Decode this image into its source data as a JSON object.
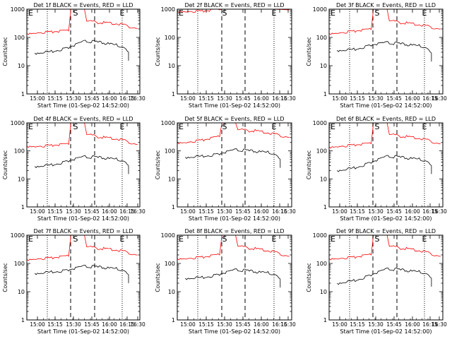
{
  "figure": {
    "ylabel": "Counts/sec",
    "xlabel": "Start Time (01-Sep-02 14:52:00)",
    "xticks": [
      "15:00",
      "15:15",
      "15:30",
      "15:45",
      "16:00",
      "16:15",
      "16:30"
    ],
    "yticks": [
      "1",
      "10",
      "100",
      "1000"
    ],
    "markers": {
      "start": "E",
      "saa": "S",
      "end": "E"
    },
    "colors": {
      "events": "#000000",
      "lld": "#ff0000"
    }
  },
  "chart_data": [
    {
      "type": "line",
      "title": "Det 1f BLACK = Events, RED = LLD",
      "xlabel": "Start Time (01-Sep-02 14:52:00)",
      "ylabel": "Counts/sec",
      "ylim": [
        1,
        1000
      ],
      "xlim": [
        "14:52",
        "16:32"
      ],
      "yscale": "log",
      "series": [
        {
          "name": "LLD",
          "x": [
            "14:52",
            "15:00",
            "15:15",
            "15:29",
            "15:31",
            "15:43",
            "15:45",
            "16:00",
            "16:15",
            "16:30"
          ],
          "values": [
            140,
            150,
            160,
            170,
            1000,
            1000,
            370,
            330,
            300,
            210
          ]
        },
        {
          "name": "Events",
          "x": [
            "14:59",
            "15:15",
            "15:29",
            "15:45",
            "16:00",
            "16:15",
            "16:22"
          ],
          "values": [
            28,
            32,
            45,
            75,
            63,
            50,
            30
          ]
        }
      ]
    },
    {
      "type": "line",
      "title": "Det 2f BLACK = Events, RED = LLD",
      "xlabel": "Start Time (01-Sep-02 14:52:00)",
      "ylabel": "Counts/sec",
      "ylim": [
        1,
        1000
      ],
      "xlim": [
        "14:52",
        "16:32"
      ],
      "yscale": "log",
      "series": [
        {
          "name": "LLD",
          "x": [
            "14:52",
            "15:00",
            "15:15",
            "15:29",
            "15:31",
            "15:43",
            "15:45",
            "16:00",
            "16:15",
            "16:30"
          ],
          "values": [
            850,
            860,
            870,
            950,
            1000,
            1000,
            1050,
            1050,
            1000,
            950
          ]
        },
        {
          "name": "Events",
          "x": [],
          "values": []
        }
      ]
    },
    {
      "type": "line",
      "title": "Det 3f BLACK = Events, RED = LLD",
      "xlabel": "Start Time (01-Sep-02 14:52:00)",
      "ylabel": "Counts/sec",
      "ylim": [
        1,
        1000
      ],
      "xlim": [
        "14:52",
        "16:32"
      ],
      "yscale": "log",
      "series": [
        {
          "name": "LLD",
          "x": [
            "14:52",
            "15:00",
            "15:15",
            "15:29",
            "15:31",
            "15:43",
            "15:45",
            "16:00",
            "16:15",
            "16:30"
          ],
          "values": [
            140,
            150,
            170,
            190,
            1000,
            1000,
            380,
            320,
            270,
            200
          ]
        },
        {
          "name": "Events",
          "x": [
            "14:59",
            "15:15",
            "15:29",
            "15:45",
            "16:00",
            "16:15",
            "16:22"
          ],
          "values": [
            35,
            38,
            55,
            65,
            55,
            48,
            28
          ]
        }
      ]
    },
    {
      "type": "line",
      "title": "Det 4f BLACK = Events, RED = LLD",
      "xlabel": "Start Time (01-Sep-02 14:52:00)",
      "ylabel": "Counts/sec",
      "ylim": [
        1,
        1000
      ],
      "xlim": [
        "14:52",
        "16:32"
      ],
      "yscale": "log",
      "series": [
        {
          "name": "LLD",
          "x": [
            "14:52",
            "15:00",
            "15:15",
            "15:29",
            "15:31",
            "15:43",
            "15:45",
            "16:00",
            "16:15",
            "16:30"
          ],
          "values": [
            150,
            150,
            160,
            170,
            1000,
            1000,
            380,
            300,
            260,
            170
          ]
        },
        {
          "name": "Events",
          "x": [
            "14:59",
            "15:15",
            "15:29",
            "15:45",
            "16:00",
            "16:15",
            "16:22"
          ],
          "values": [
            28,
            32,
            45,
            62,
            55,
            48,
            30
          ]
        }
      ]
    },
    {
      "type": "line",
      "title": "Det 5f BLACK = Events, RED = LLD",
      "xlabel": "Start Time (01-Sep-02 14:52:00)",
      "ylabel": "Counts/sec",
      "ylim": [
        1,
        1000
      ],
      "xlim": [
        "14:52",
        "16:32"
      ],
      "yscale": "log",
      "series": [
        {
          "name": "LLD",
          "x": [
            "14:52",
            "15:00",
            "15:15",
            "15:29",
            "15:31",
            "15:43",
            "15:45",
            "16:00",
            "16:15",
            "16:30"
          ],
          "values": [
            200,
            210,
            250,
            320,
            1000,
            1000,
            560,
            520,
            420,
            310
          ]
        },
        {
          "name": "Events",
          "x": [
            "14:59",
            "15:15",
            "15:29",
            "15:45",
            "16:00",
            "16:15",
            "16:22"
          ],
          "values": [
            60,
            65,
            80,
            110,
            95,
            85,
            50
          ]
        }
      ]
    },
    {
      "type": "line",
      "title": "Det 6f BLACK = Events, RED = LLD",
      "xlabel": "Start Time (01-Sep-02 14:52:00)",
      "ylabel": "Counts/sec",
      "ylim": [
        1,
        1000
      ],
      "xlim": [
        "14:52",
        "16:32"
      ],
      "yscale": "log",
      "series": [
        {
          "name": "LLD",
          "x": [
            "14:52",
            "15:00",
            "15:15",
            "15:29",
            "15:31",
            "15:43",
            "15:45",
            "16:00",
            "16:15",
            "16:30"
          ],
          "values": [
            140,
            150,
            165,
            180,
            1000,
            1000,
            380,
            320,
            270,
            180
          ]
        },
        {
          "name": "Events",
          "x": [
            "14:59",
            "15:15",
            "15:29",
            "15:45",
            "16:00",
            "16:15",
            "16:22"
          ],
          "values": [
            20,
            25,
            40,
            65,
            55,
            48,
            30
          ]
        }
      ]
    },
    {
      "type": "line",
      "title": "Det 7f BLACK = Events, RED = LLD",
      "xlabel": "Start Time (01-Sep-02 14:52:00)",
      "ylabel": "Counts/sec",
      "ylim": [
        1,
        1000
      ],
      "xlim": [
        "14:52",
        "16:32"
      ],
      "yscale": "log",
      "series": [
        {
          "name": "LLD",
          "x": [
            "14:52",
            "15:00",
            "15:15",
            "15:29",
            "15:31",
            "15:43",
            "15:45",
            "16:00",
            "16:15",
            "16:30"
          ],
          "values": [
            140,
            150,
            160,
            180,
            1000,
            1000,
            380,
            330,
            290,
            200
          ]
        },
        {
          "name": "Events",
          "x": [
            "14:59",
            "15:15",
            "15:29",
            "15:45",
            "16:00",
            "16:15",
            "16:22"
          ],
          "values": [
            45,
            50,
            60,
            80,
            70,
            62,
            40
          ]
        }
      ]
    },
    {
      "type": "line",
      "title": "Det 8f BLACK = Events, RED = LLD",
      "xlabel": "Start Time (01-Sep-02 14:52:00)",
      "ylabel": "Counts/sec",
      "ylim": [
        1,
        1000
      ],
      "xlim": [
        "14:52",
        "16:32"
      ],
      "yscale": "log",
      "series": [
        {
          "name": "LLD",
          "x": [
            "14:52",
            "15:00",
            "15:15",
            "15:29",
            "15:31",
            "15:43",
            "15:45",
            "16:00",
            "16:15",
            "16:30"
          ],
          "values": [
            150,
            155,
            170,
            200,
            1000,
            1000,
            400,
            330,
            270,
            180
          ]
        },
        {
          "name": "Events",
          "x": [
            "14:59",
            "15:15",
            "15:29",
            "15:45",
            "16:00",
            "16:15",
            "16:22"
          ],
          "values": [
            30,
            32,
            42,
            60,
            50,
            44,
            28
          ]
        }
      ]
    },
    {
      "type": "line",
      "title": "Det 9f BLACK = Events, RED = LLD",
      "xlabel": "Start Time (01-Sep-02 14:52:00)",
      "ylabel": "Counts/sec",
      "ylim": [
        1,
        1000
      ],
      "xlim": [
        "14:52",
        "16:32"
      ],
      "yscale": "log",
      "series": [
        {
          "name": "LLD",
          "x": [
            "14:52",
            "15:00",
            "15:15",
            "15:29",
            "15:31",
            "15:43",
            "15:45",
            "16:00",
            "16:15",
            "16:30"
          ],
          "values": [
            150,
            155,
            170,
            200,
            1000,
            1000,
            400,
            330,
            270,
            180
          ]
        },
        {
          "name": "Events",
          "x": [
            "14:59",
            "15:15",
            "15:29",
            "15:45",
            "16:00",
            "16:15",
            "16:22"
          ],
          "values": [
            20,
            25,
            40,
            65,
            55,
            48,
            30
          ]
        }
      ]
    }
  ]
}
